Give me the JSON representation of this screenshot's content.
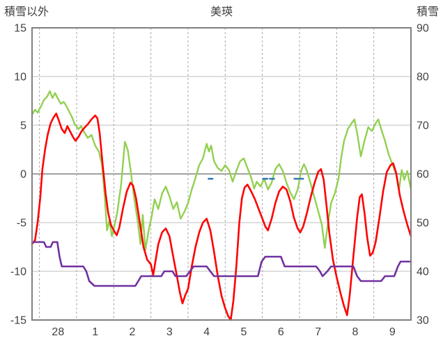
{
  "header": {
    "left_label": "積雪以外",
    "title": "美瑛",
    "right_label": "積雪"
  },
  "chart_data": {
    "type": "line",
    "title": "美瑛",
    "left_axis": {
      "label": "積雪以外",
      "min": -15,
      "max": 15,
      "ticks": [
        15,
        10,
        5,
        0,
        -5,
        -10,
        -15
      ]
    },
    "right_axis": {
      "label": "積雪",
      "min": 30,
      "max": 90,
      "ticks": [
        90,
        80,
        70,
        60,
        50,
        40,
        30
      ]
    },
    "x_axis": {
      "min": -0.2,
      "max": 10,
      "gridlines": [
        0,
        1,
        2,
        3,
        4,
        5,
        6,
        7,
        8,
        9,
        10
      ],
      "labels": [
        "28",
        "1",
        "2",
        "3",
        "4",
        "5",
        "6",
        "7",
        "8",
        "9"
      ],
      "label_positions": [
        0.5,
        1.5,
        2.5,
        3.5,
        4.5,
        5.5,
        6.5,
        7.5,
        8.5,
        9.5
      ]
    },
    "grid": {
      "horizontal_color": "#BFBFBF",
      "vertical_color": "#A6A6A6",
      "zero_line_color": "#808080",
      "frame_color": "#808080"
    },
    "series": [
      {
        "name": "green-temperature",
        "color": "#92D050",
        "axis": "left",
        "width": 2.4,
        "points": [
          [
            -0.2,
            6.1
          ],
          [
            -0.12,
            6.6
          ],
          [
            -0.05,
            6.3
          ],
          [
            0.05,
            7.0
          ],
          [
            0.12,
            7.6
          ],
          [
            0.2,
            7.9
          ],
          [
            0.28,
            8.5
          ],
          [
            0.35,
            7.8
          ],
          [
            0.42,
            8.3
          ],
          [
            0.5,
            7.7
          ],
          [
            0.58,
            7.2
          ],
          [
            0.65,
            7.4
          ],
          [
            0.72,
            7.0
          ],
          [
            0.8,
            6.4
          ],
          [
            0.88,
            5.8
          ],
          [
            0.95,
            5.1
          ],
          [
            1.05,
            4.6
          ],
          [
            1.12,
            4.9
          ],
          [
            1.2,
            4.3
          ],
          [
            1.3,
            3.7
          ],
          [
            1.4,
            4.0
          ],
          [
            1.5,
            2.9
          ],
          [
            1.6,
            2.3
          ],
          [
            1.68,
            1.0
          ],
          [
            1.75,
            -2.0
          ],
          [
            1.82,
            -5.8
          ],
          [
            1.88,
            -4.8
          ],
          [
            1.95,
            -6.4
          ],
          [
            2.02,
            -5.3
          ],
          [
            2.1,
            -3.8
          ],
          [
            2.2,
            -1.0
          ],
          [
            2.3,
            3.3
          ],
          [
            2.38,
            2.4
          ],
          [
            2.45,
            0.5
          ],
          [
            2.55,
            -2.5
          ],
          [
            2.65,
            -5.0
          ],
          [
            2.72,
            -7.2
          ],
          [
            2.78,
            -4.2
          ],
          [
            2.85,
            -7.8
          ],
          [
            2.95,
            -5.6
          ],
          [
            3.02,
            -4.4
          ],
          [
            3.1,
            -2.6
          ],
          [
            3.2,
            -3.6
          ],
          [
            3.3,
            -2.0
          ],
          [
            3.4,
            -1.3
          ],
          [
            3.5,
            -2.3
          ],
          [
            3.6,
            -3.6
          ],
          [
            3.7,
            -2.9
          ],
          [
            3.8,
            -4.6
          ],
          [
            3.9,
            -3.9
          ],
          [
            4.0,
            -3.0
          ],
          [
            4.1,
            -1.6
          ],
          [
            4.2,
            -0.4
          ],
          [
            4.3,
            0.9
          ],
          [
            4.4,
            1.6
          ],
          [
            4.5,
            3.1
          ],
          [
            4.56,
            2.3
          ],
          [
            4.62,
            2.9
          ],
          [
            4.7,
            1.3
          ],
          [
            4.8,
            0.6
          ],
          [
            4.9,
            0.3
          ],
          [
            5.0,
            0.9
          ],
          [
            5.1,
            0.4
          ],
          [
            5.2,
            -0.8
          ],
          [
            5.3,
            0.3
          ],
          [
            5.4,
            1.3
          ],
          [
            5.5,
            1.6
          ],
          [
            5.6,
            0.6
          ],
          [
            5.7,
            -0.4
          ],
          [
            5.78,
            -1.5
          ],
          [
            5.85,
            -0.8
          ],
          [
            5.95,
            -1.3
          ],
          [
            6.05,
            -0.5
          ],
          [
            6.15,
            -1.6
          ],
          [
            6.25,
            -0.9
          ],
          [
            6.35,
            0.5
          ],
          [
            6.45,
            1.0
          ],
          [
            6.55,
            0.3
          ],
          [
            6.65,
            -0.9
          ],
          [
            6.75,
            -1.9
          ],
          [
            6.85,
            -2.6
          ],
          [
            6.95,
            -1.6
          ],
          [
            7.05,
            0.4
          ],
          [
            7.12,
            1.0
          ],
          [
            7.2,
            0.3
          ],
          [
            7.3,
            -1.0
          ],
          [
            7.4,
            -2.4
          ],
          [
            7.5,
            -3.8
          ],
          [
            7.6,
            -5.2
          ],
          [
            7.68,
            -7.6
          ],
          [
            7.75,
            -5.5
          ],
          [
            7.85,
            -3.0
          ],
          [
            7.95,
            -2.0
          ],
          [
            8.05,
            -0.5
          ],
          [
            8.12,
            1.6
          ],
          [
            8.2,
            3.4
          ],
          [
            8.3,
            4.6
          ],
          [
            8.4,
            5.2
          ],
          [
            8.48,
            5.6
          ],
          [
            8.56,
            4.0
          ],
          [
            8.65,
            1.8
          ],
          [
            8.75,
            3.4
          ],
          [
            8.85,
            4.8
          ],
          [
            8.95,
            4.4
          ],
          [
            9.05,
            5.2
          ],
          [
            9.12,
            5.6
          ],
          [
            9.2,
            4.6
          ],
          [
            9.3,
            3.4
          ],
          [
            9.4,
            2.0
          ],
          [
            9.5,
            1.0
          ],
          [
            9.6,
            0.0
          ],
          [
            9.68,
            -1.6
          ],
          [
            9.75,
            0.4
          ],
          [
            9.82,
            -0.6
          ],
          [
            9.9,
            0.3
          ],
          [
            10.0,
            -1.6
          ]
        ]
      },
      {
        "name": "red-temperature",
        "color": "#FF0000",
        "axis": "left",
        "width": 2.6,
        "points": [
          [
            -0.2,
            -7.2
          ],
          [
            -0.12,
            -6.8
          ],
          [
            -0.05,
            -5.0
          ],
          [
            0.02,
            -2.5
          ],
          [
            0.08,
            0.5
          ],
          [
            0.15,
            2.5
          ],
          [
            0.22,
            4.0
          ],
          [
            0.3,
            5.2
          ],
          [
            0.38,
            5.8
          ],
          [
            0.45,
            6.2
          ],
          [
            0.52,
            5.5
          ],
          [
            0.6,
            4.6
          ],
          [
            0.68,
            4.2
          ],
          [
            0.75,
            4.9
          ],
          [
            0.82,
            4.4
          ],
          [
            0.9,
            3.8
          ],
          [
            0.97,
            3.4
          ],
          [
            1.05,
            3.8
          ],
          [
            1.12,
            4.3
          ],
          [
            1.2,
            4.7
          ],
          [
            1.3,
            5.1
          ],
          [
            1.4,
            5.6
          ],
          [
            1.5,
            6.0
          ],
          [
            1.56,
            5.7
          ],
          [
            1.62,
            4.2
          ],
          [
            1.7,
            1.0
          ],
          [
            1.78,
            -2.0
          ],
          [
            1.85,
            -4.0
          ],
          [
            1.92,
            -5.2
          ],
          [
            2.0,
            -5.8
          ],
          [
            2.08,
            -6.3
          ],
          [
            2.15,
            -5.5
          ],
          [
            2.25,
            -3.5
          ],
          [
            2.35,
            -1.8
          ],
          [
            2.45,
            -0.9
          ],
          [
            2.52,
            -1.2
          ],
          [
            2.6,
            -2.5
          ],
          [
            2.7,
            -5.0
          ],
          [
            2.8,
            -7.5
          ],
          [
            2.9,
            -8.8
          ],
          [
            3.0,
            -9.3
          ],
          [
            3.06,
            -10.4
          ],
          [
            3.12,
            -9.0
          ],
          [
            3.2,
            -7.2
          ],
          [
            3.3,
            -6.0
          ],
          [
            3.4,
            -5.6
          ],
          [
            3.5,
            -6.4
          ],
          [
            3.6,
            -8.5
          ],
          [
            3.7,
            -10.5
          ],
          [
            3.78,
            -12.2
          ],
          [
            3.85,
            -13.3
          ],
          [
            3.92,
            -12.5
          ],
          [
            4.0,
            -11.8
          ],
          [
            4.1,
            -9.5
          ],
          [
            4.2,
            -7.5
          ],
          [
            4.3,
            -6.0
          ],
          [
            4.4,
            -5.0
          ],
          [
            4.5,
            -4.6
          ],
          [
            4.6,
            -5.8
          ],
          [
            4.7,
            -8.0
          ],
          [
            4.8,
            -10.5
          ],
          [
            4.9,
            -12.5
          ],
          [
            5.0,
            -13.8
          ],
          [
            5.08,
            -14.6
          ],
          [
            5.15,
            -15.0
          ],
          [
            5.22,
            -13.0
          ],
          [
            5.3,
            -9.5
          ],
          [
            5.38,
            -5.0
          ],
          [
            5.45,
            -2.5
          ],
          [
            5.52,
            -1.4
          ],
          [
            5.6,
            -1.1
          ],
          [
            5.7,
            -1.8
          ],
          [
            5.8,
            -2.6
          ],
          [
            5.9,
            -3.6
          ],
          [
            6.0,
            -4.6
          ],
          [
            6.08,
            -5.4
          ],
          [
            6.15,
            -5.8
          ],
          [
            6.25,
            -4.6
          ],
          [
            6.35,
            -3.0
          ],
          [
            6.45,
            -1.8
          ],
          [
            6.55,
            -1.3
          ],
          [
            6.65,
            -1.6
          ],
          [
            6.75,
            -2.8
          ],
          [
            6.85,
            -4.5
          ],
          [
            6.95,
            -5.6
          ],
          [
            7.02,
            -6.0
          ],
          [
            7.1,
            -5.4
          ],
          [
            7.2,
            -4.0
          ],
          [
            7.3,
            -2.4
          ],
          [
            7.4,
            -1.0
          ],
          [
            7.5,
            0.2
          ],
          [
            7.58,
            0.5
          ],
          [
            7.65,
            -0.6
          ],
          [
            7.72,
            -3.0
          ],
          [
            7.8,
            -6.0
          ],
          [
            7.9,
            -8.8
          ],
          [
            8.0,
            -10.6
          ],
          [
            8.1,
            -12.2
          ],
          [
            8.2,
            -13.6
          ],
          [
            8.28,
            -14.5
          ],
          [
            8.35,
            -12.5
          ],
          [
            8.45,
            -8.5
          ],
          [
            8.55,
            -4.5
          ],
          [
            8.62,
            -2.4
          ],
          [
            8.68,
            -2.1
          ],
          [
            8.75,
            -4.0
          ],
          [
            8.82,
            -6.5
          ],
          [
            8.9,
            -8.4
          ],
          [
            8.97,
            -8.1
          ],
          [
            9.05,
            -7.0
          ],
          [
            9.15,
            -4.5
          ],
          [
            9.25,
            -1.8
          ],
          [
            9.35,
            0.2
          ],
          [
            9.45,
            0.9
          ],
          [
            9.52,
            1.1
          ],
          [
            9.6,
            0.1
          ],
          [
            9.7,
            -2.2
          ],
          [
            9.8,
            -3.8
          ],
          [
            9.9,
            -5.2
          ],
          [
            10.0,
            -6.4
          ]
        ]
      },
      {
        "name": "snow-depth",
        "color": "#7030A0",
        "axis": "right",
        "width": 2.6,
        "points": [
          [
            -0.2,
            46
          ],
          [
            0.12,
            46
          ],
          [
            0.18,
            45
          ],
          [
            0.3,
            45
          ],
          [
            0.36,
            46
          ],
          [
            0.48,
            46
          ],
          [
            0.54,
            43
          ],
          [
            0.6,
            41
          ],
          [
            1.18,
            41
          ],
          [
            1.26,
            40
          ],
          [
            1.34,
            38
          ],
          [
            1.48,
            37
          ],
          [
            2.58,
            37
          ],
          [
            2.66,
            38
          ],
          [
            2.74,
            39
          ],
          [
            3.28,
            39
          ],
          [
            3.36,
            40
          ],
          [
            3.58,
            40
          ],
          [
            3.66,
            39
          ],
          [
            3.95,
            39
          ],
          [
            4.05,
            40
          ],
          [
            4.15,
            41
          ],
          [
            4.5,
            41
          ],
          [
            4.6,
            40
          ],
          [
            4.7,
            39
          ],
          [
            5.88,
            39
          ],
          [
            5.98,
            42
          ],
          [
            6.08,
            43
          ],
          [
            6.5,
            43
          ],
          [
            6.6,
            41
          ],
          [
            7.45,
            41
          ],
          [
            7.55,
            40
          ],
          [
            7.62,
            39
          ],
          [
            7.75,
            40
          ],
          [
            7.85,
            41
          ],
          [
            8.45,
            41
          ],
          [
            8.55,
            39
          ],
          [
            8.65,
            38
          ],
          [
            9.2,
            38
          ],
          [
            9.3,
            39
          ],
          [
            9.55,
            39
          ],
          [
            9.65,
            41
          ],
          [
            9.72,
            42
          ],
          [
            10.0,
            42
          ]
        ]
      },
      {
        "name": "blue-tick-marks",
        "color": "#2E75B6",
        "axis": "left",
        "width": 2.4,
        "segments": [
          [
            [
              4.55,
              -0.5
            ],
            [
              4.66,
              -0.5
            ]
          ],
          [
            [
              6.02,
              -0.5
            ],
            [
              6.14,
              -0.5
            ]
          ],
          [
            [
              6.2,
              -0.5
            ],
            [
              6.32,
              -0.5
            ]
          ],
          [
            [
              6.86,
              -0.5
            ],
            [
              6.98,
              -0.5
            ]
          ],
          [
            [
              7.02,
              -0.5
            ],
            [
              7.1,
              -0.5
            ]
          ]
        ]
      }
    ]
  }
}
